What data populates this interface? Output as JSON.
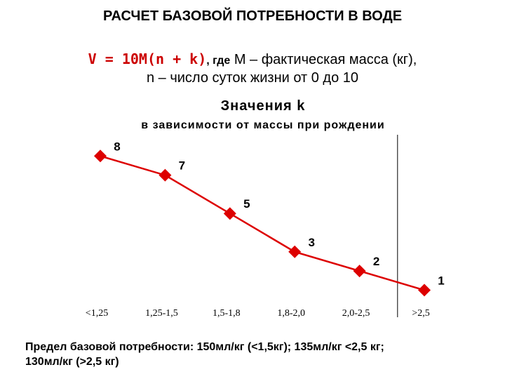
{
  "title": "РАСЧЕТ БАЗОВОЙ ПОТРЕБНОСТИ В ВОДЕ",
  "formula": {
    "expression": "V = 10M(n + k)",
    "where_label": ", где",
    "m_description": "M – фактическая масса (кг),",
    "n_description": "n – число суток жизни от 0 до 10"
  },
  "footer": {
    "line1": "Предел базовой потребности: 150мл/кг (<1,5кг); 135мл/кг <2,5 кг;",
    "line2": "130мл/кг (>2,5 кг)"
  },
  "chart_data": {
    "type": "line",
    "title": "Значения k",
    "subtitle": "в зависимости от массы при рождении",
    "categories": [
      "<1,25",
      "1,25-1,5",
      "1,5-1,8",
      "1,8-2,0",
      "2,0-2,5",
      ">2,5"
    ],
    "series": [
      {
        "values": [
          8,
          7,
          5,
          3,
          2,
          1
        ],
        "color": "#dd0000"
      }
    ],
    "data_labels": [
      "8",
      "7",
      "5",
      "3",
      "2",
      "1"
    ],
    "grid": false,
    "legend": "none",
    "reference_line_between_categories": [
      4,
      5
    ]
  }
}
